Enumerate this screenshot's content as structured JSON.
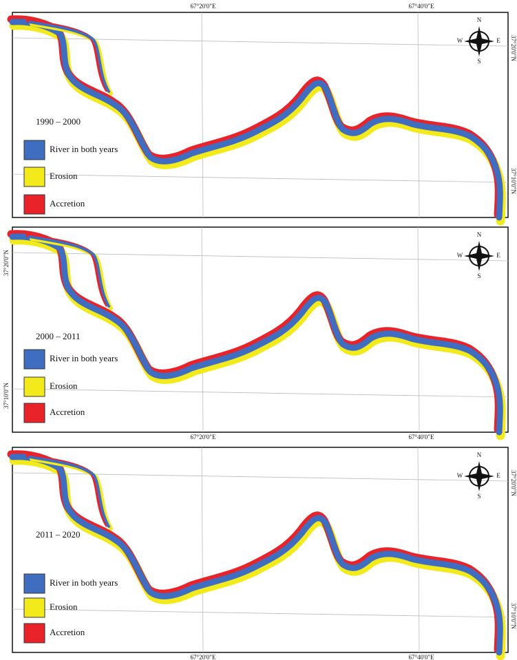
{
  "panels": [
    {
      "period": "1990 – 2000",
      "legend": [
        "River in both years",
        "Erosion",
        "Accretion"
      ],
      "compass": {
        "n": "N",
        "e": "E",
        "s": "S",
        "w": "W"
      },
      "lon_labels": [
        "67°20'0\"E",
        "67°40'0\"E"
      ],
      "lat_labels": [
        "37°20'0\"N",
        "37°10'0\"N"
      ]
    },
    {
      "period": "2000 – 2011",
      "legend": [
        "River in both years",
        "Erosion",
        "Accretion"
      ],
      "compass": {
        "n": "N",
        "e": "E",
        "s": "S",
        "w": "W"
      },
      "lon_labels": [
        "67°20'0\"E",
        "67°40'0\"E"
      ],
      "lat_labels": [
        "37°20'0\"N",
        "37°10'0\"N"
      ]
    },
    {
      "period": "2011 – 2020",
      "legend": [
        "River in both years",
        "Erosion",
        "Accretion"
      ],
      "compass": {
        "n": "N",
        "e": "E",
        "s": "S",
        "w": "W"
      },
      "lon_labels": [
        "67°20'0\"E",
        "67°40'0\"E"
      ],
      "lat_labels": [
        "37°20'0\"N",
        "37°10'0\"N"
      ]
    }
  ]
}
